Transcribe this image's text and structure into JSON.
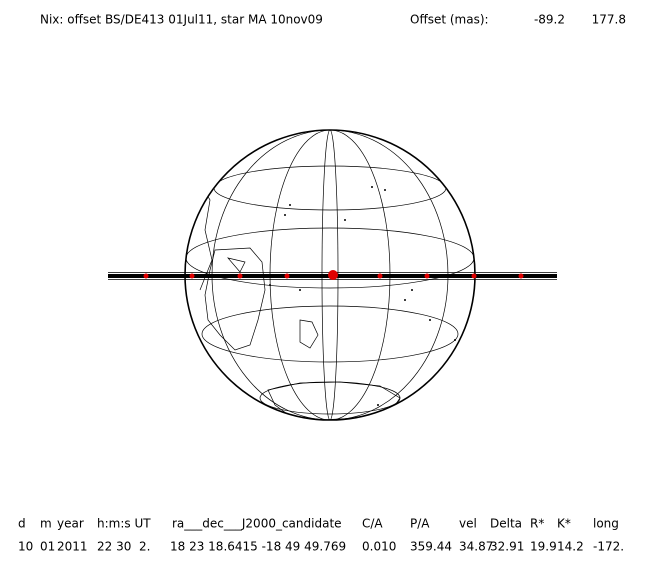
{
  "header": {
    "title": "Nix: offset BS/DE413 01Jul11, star MA 10nov09",
    "offset_label": "Offset (mas):",
    "offset_values": [
      "-89.2",
      "177.8"
    ]
  },
  "table": {
    "columns": [
      "d",
      "m",
      "year",
      "h:m:s UT",
      "ra___dec___J2000_candidate",
      "C/A",
      "P/A",
      "vel",
      "Delta",
      "R*",
      "K*",
      "long"
    ],
    "values": [
      "10",
      "01",
      "2011",
      "22 30  2.",
      "18 23 18.6415 -18 49 49.769",
      "0.010",
      "359.44",
      "34.87",
      "32.91",
      "19.9",
      "14.2",
      "-172."
    ]
  }
}
